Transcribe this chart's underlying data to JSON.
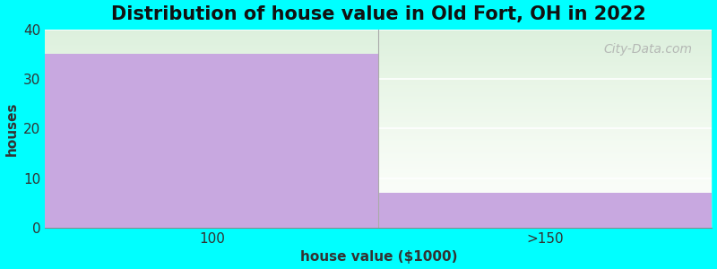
{
  "title": "Distribution of house value in Old Fort, OH in 2022",
  "xlabel": "house value ($1000)",
  "ylabel": "houses",
  "categories": [
    "100",
    ">150"
  ],
  "values": [
    35,
    7
  ],
  "bar_color": "#C8A8E0",
  "bar_edgecolor": "none",
  "ylim": [
    0,
    40
  ],
  "yticks": [
    0,
    10,
    20,
    30,
    40
  ],
  "background_color": "#00FFFF",
  "plot_bg_top": "#E8F5E9",
  "plot_bg_bottom": "#FFFFFF",
  "grid_color": "#FFFFFF",
  "title_fontsize": 15,
  "label_fontsize": 11,
  "tick_fontsize": 11,
  "watermark": "City-Data.com"
}
